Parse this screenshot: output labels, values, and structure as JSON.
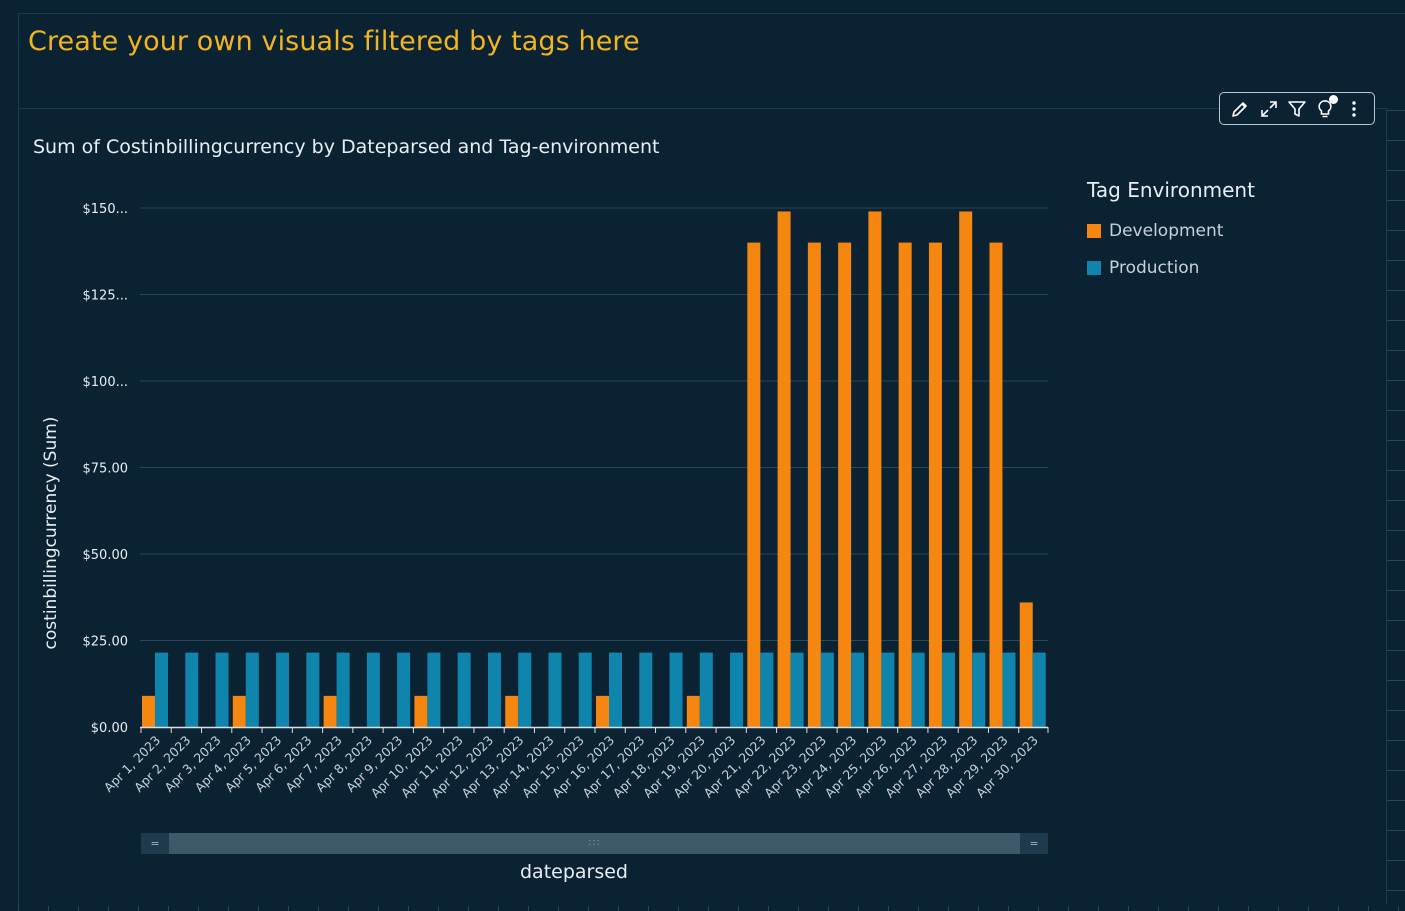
{
  "heading": "Create your own visuals filtered by tags here",
  "visual": {
    "title": "Sum of Costinbillingcurrency by Dateparsed and Tag-environment",
    "menu": [
      "edit-icon",
      "expand-icon",
      "filter-icon",
      "insight-icon",
      "more-icon"
    ]
  },
  "legend": {
    "title": "Tag Environment",
    "items": [
      {
        "label": "Development",
        "color": "#f5860f"
      },
      {
        "label": "Production",
        "color": "#0f85ad"
      }
    ]
  },
  "chart_data": {
    "type": "bar",
    "title": "Sum of Costinbillingcurrency by Dateparsed and Tag-environment",
    "xlabel": "dateparsed",
    "ylabel": "costinbillingcurrency (Sum)",
    "ylim": [
      0,
      150
    ],
    "yticks": [
      {
        "value": 0,
        "label": "$0.00"
      },
      {
        "value": 25,
        "label": "$25.00"
      },
      {
        "value": 50,
        "label": "$50.00"
      },
      {
        "value": 75,
        "label": "$75.00"
      },
      {
        "value": 100,
        "label": "$100..."
      },
      {
        "value": 125,
        "label": "$125..."
      },
      {
        "value": 150,
        "label": "$150..."
      }
    ],
    "grid": true,
    "legend_position": "right",
    "categories": [
      "Apr 1, 2023",
      "Apr 2, 2023",
      "Apr 3, 2023",
      "Apr 4, 2023",
      "Apr 5, 2023",
      "Apr 6, 2023",
      "Apr 7, 2023",
      "Apr 8, 2023",
      "Apr 9, 2023",
      "Apr 10, 2023",
      "Apr 11, 2023",
      "Apr 12, 2023",
      "Apr 13, 2023",
      "Apr 14, 2023",
      "Apr 15, 2023",
      "Apr 16, 2023",
      "Apr 17, 2023",
      "Apr 18, 2023",
      "Apr 19, 2023",
      "Apr 20, 2023",
      "Apr 21, 2023",
      "Apr 22, 2023",
      "Apr 23, 2023",
      "Apr 24, 2023",
      "Apr 25, 2023",
      "Apr 26, 2023",
      "Apr 27, 2023",
      "Apr 28, 2023",
      "Apr 29, 2023",
      "Apr 30, 2023"
    ],
    "series": [
      {
        "name": "Development",
        "color": "#f5860f",
        "values": [
          9,
          0,
          0,
          9,
          0,
          0,
          9,
          0,
          0,
          9,
          0,
          0,
          9,
          0,
          0,
          9,
          0,
          0,
          9,
          0,
          140,
          149,
          140,
          140,
          149,
          140,
          140,
          149,
          140,
          36
        ]
      },
      {
        "name": "Production",
        "color": "#0f85ad",
        "values": [
          21.5,
          21.5,
          21.5,
          21.5,
          21.5,
          21.5,
          21.5,
          21.5,
          21.5,
          21.5,
          21.5,
          21.5,
          21.5,
          21.5,
          21.5,
          21.5,
          21.5,
          21.5,
          21.5,
          21.5,
          21.5,
          21.5,
          21.5,
          21.5,
          21.5,
          21.5,
          21.5,
          21.5,
          21.5,
          21.5
        ]
      }
    ]
  }
}
